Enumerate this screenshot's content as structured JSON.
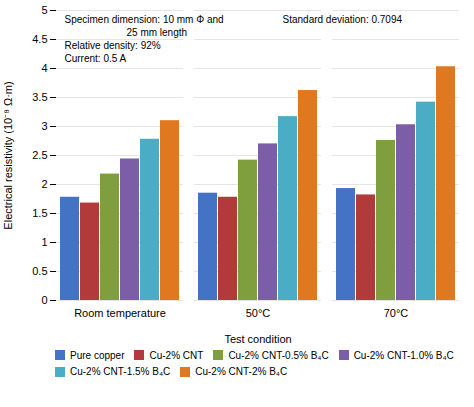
{
  "chart_data": {
    "type": "bar",
    "xlabel": "Test condition",
    "ylabel": "Electrical resistivity (10⁻⁸ Ω·m)",
    "categories": [
      "Room temperature",
      "50°C",
      "70°C"
    ],
    "series": [
      {
        "name": "Pure copper",
        "color": "#4472c4",
        "values": [
          1.78,
          1.85,
          1.93
        ]
      },
      {
        "name": "Cu-2% CNT",
        "color": "#b33a3a",
        "values": [
          1.68,
          1.78,
          1.82
        ]
      },
      {
        "name": "Cu-2% CNT-0.5% B₄C",
        "color": "#7f9f3f",
        "values": [
          2.18,
          2.42,
          2.76
        ]
      },
      {
        "name": "Cu-2% CNT-1.0% B₄C",
        "color": "#7b5ea7",
        "values": [
          2.44,
          2.7,
          3.03
        ]
      },
      {
        "name": "Cu-2% CNT-1.5% B₄C",
        "color": "#4bacc6",
        "values": [
          2.78,
          3.17,
          3.42
        ]
      },
      {
        "name": "Cu-2% CNT-2% B₄C",
        "color": "#e07820",
        "values": [
          3.1,
          3.62,
          4.03
        ]
      }
    ],
    "ylim": [
      0,
      5
    ],
    "yticks": [
      0,
      0.5,
      1,
      1.5,
      2,
      2.5,
      3,
      3.5,
      4,
      4.5,
      5
    ],
    "grid": true,
    "legend": "bottom",
    "annotations": [
      "Specimen dimension: 10 mm Φ and",
      "25 mm length",
      "Relative density: 92%",
      "Current: 0.5 A",
      "Standard deviation: 0.7094"
    ]
  }
}
